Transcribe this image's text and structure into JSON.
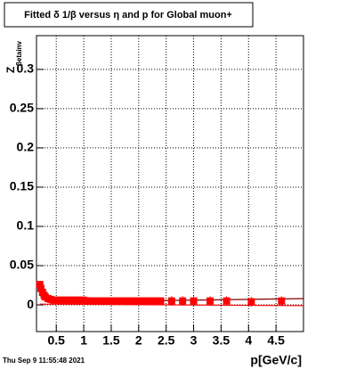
{
  "chart_data": {
    "type": "scatter",
    "title": "Fitted δ 1/β versus η and p for Global muon+",
    "y_label": "Z",
    "y_label_sub": "βetainv",
    "x_label": "p[GeV/c]",
    "timestamp": "Thu Sep  9 11:55:48 2021",
    "xlim": [
      0.14,
      5
    ],
    "ylim": [
      -0.034,
      0.343
    ],
    "xticks": [
      0.5,
      1,
      1.5,
      2,
      2.5,
      3,
      3.5,
      4,
      4.5
    ],
    "yticks": [
      0,
      0.05,
      0.1,
      0.15,
      0.2,
      0.25,
      0.3
    ],
    "grid": true,
    "series": [
      {
        "color": "#ff0000",
        "x": [
          0.2,
          0.22,
          0.25,
          0.28,
          0.3,
          0.35,
          0.4,
          0.45,
          0.5,
          0.55,
          0.6,
          0.65,
          0.7,
          0.75,
          0.8,
          0.85,
          0.9,
          0.95,
          1,
          1.05,
          1.1,
          1.15,
          1.2,
          1.25,
          1.3,
          1.35,
          1.4,
          1.45,
          1.5,
          1.55,
          1.6,
          1.65,
          1.7,
          1.75,
          1.8,
          1.85,
          1.9,
          1.95,
          2,
          2.05,
          2.1,
          2.15,
          2.2,
          2.25,
          2.3,
          2.35,
          2.4,
          2.6,
          2.8,
          3,
          3.3,
          3.6,
          4.05,
          4.6
        ],
        "values": [
          0.026,
          0.021,
          0.016,
          0.012,
          0.01,
          0.008,
          0.007,
          0.006,
          0.006,
          0.006,
          0.006,
          0.006,
          0.006,
          0.006,
          0.006,
          0.006,
          0.006,
          0.006,
          0.006,
          0.005,
          0.005,
          0.005,
          0.005,
          0.005,
          0.005,
          0.005,
          0.005,
          0.005,
          0.005,
          0.005,
          0.005,
          0.005,
          0.005,
          0.005,
          0.005,
          0.005,
          0.005,
          0.005,
          0.005,
          0.005,
          0.005,
          0.005,
          0.005,
          0.005,
          0.005,
          0.005,
          0.005,
          0.005,
          0.005,
          0.005,
          0.005,
          0.005,
          0.004,
          0.005
        ],
        "errors": [
          0.004,
          0.004,
          0.004,
          0.004,
          0.004,
          0.004,
          0.004,
          0.004,
          0.004,
          0.004,
          0.004,
          0.004,
          0.004,
          0.004,
          0.004,
          0.004,
          0.004,
          0.004,
          0.004,
          0.004,
          0.004,
          0.004,
          0.004,
          0.004,
          0.004,
          0.004,
          0.004,
          0.004,
          0.004,
          0.004,
          0.004,
          0.004,
          0.004,
          0.004,
          0.004,
          0.004,
          0.004,
          0.004,
          0.004,
          0.004,
          0.004,
          0.004,
          0.004,
          0.004,
          0.004,
          0.004,
          0.004,
          0.006,
          0.006,
          0.006,
          0.006,
          0.006,
          0.006,
          0.006
        ]
      }
    ],
    "lines": [
      {
        "color": "#800000",
        "x": [
          0.2,
          0.5,
          1,
          2,
          3,
          4,
          5
        ],
        "values": [
          0.012,
          0.006,
          0.005,
          0.005,
          0.006,
          0.007,
          0.008
        ]
      },
      {
        "color": "#ff0000",
        "x": [
          0.2,
          5
        ],
        "values": [
          0.001,
          -0.001
        ]
      }
    ]
  }
}
